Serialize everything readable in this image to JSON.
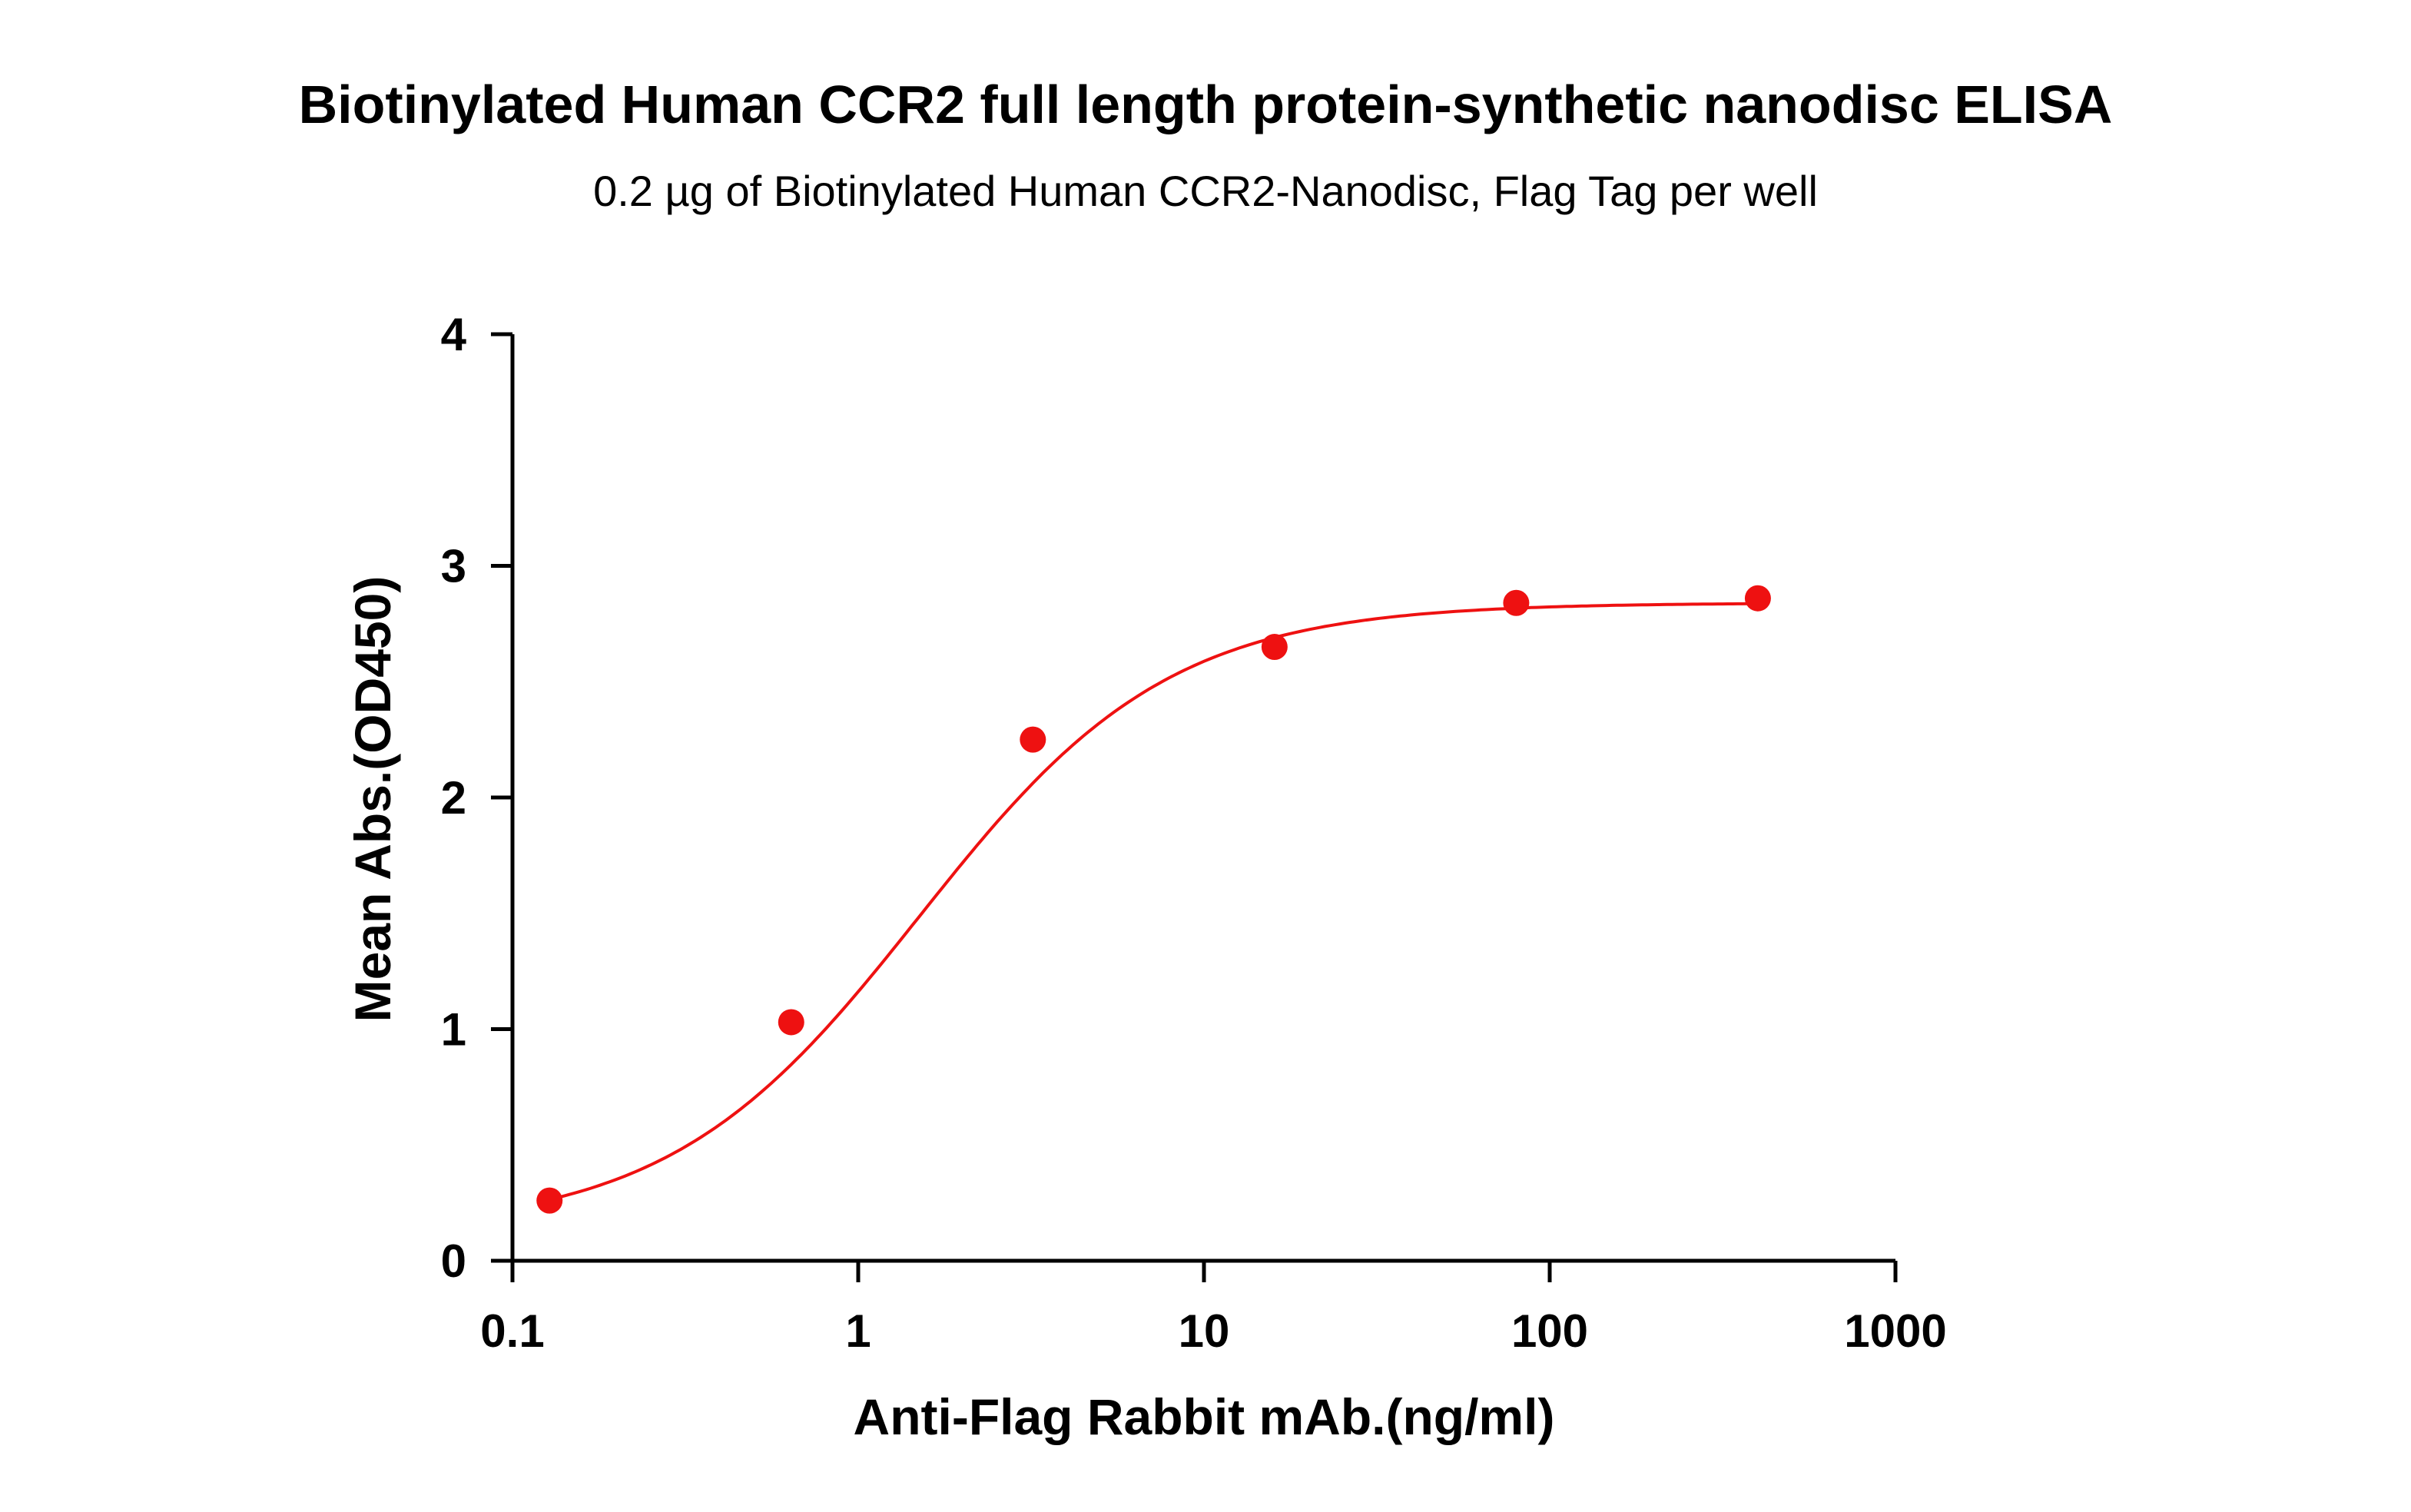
{
  "chart_data": {
    "type": "scatter",
    "title": "Biotinylated Human CCR2 full length protein-synthetic nanodisc ELISA",
    "subtitle": "0.2 µg of Biotinylated Human CCR2-Nanodisc, Flag Tag per well",
    "xlabel": "Anti-Flag Rabbit mAb.(ng/ml)",
    "ylabel": "Mean Abs.(OD450)",
    "x_scale": "log",
    "xlim": [
      0.1,
      1000
    ],
    "ylim": [
      0,
      4
    ],
    "x_ticks": [
      {
        "value": 0.1,
        "label": "0.1"
      },
      {
        "value": 1,
        "label": "1"
      },
      {
        "value": 10,
        "label": "10"
      },
      {
        "value": 100,
        "label": "100"
      },
      {
        "value": 1000,
        "label": "1000"
      }
    ],
    "y_ticks": [
      {
        "value": 0,
        "label": "0"
      },
      {
        "value": 1,
        "label": "1"
      },
      {
        "value": 2,
        "label": "2"
      },
      {
        "value": 3,
        "label": "3"
      },
      {
        "value": 4,
        "label": "4"
      }
    ],
    "grid": false,
    "legend": "none",
    "color": "#ee1111",
    "series": [
      {
        "x": [
          0.128,
          0.64,
          3.2,
          16,
          80,
          400
        ],
        "y": [
          0.26,
          1.03,
          2.25,
          2.65,
          2.84,
          2.86
        ]
      }
    ],
    "fit_curve": {
      "model": "4PL",
      "bottom": 0.13,
      "top": 2.84,
      "ec50": 1.5,
      "hill": 1.2
    }
  }
}
